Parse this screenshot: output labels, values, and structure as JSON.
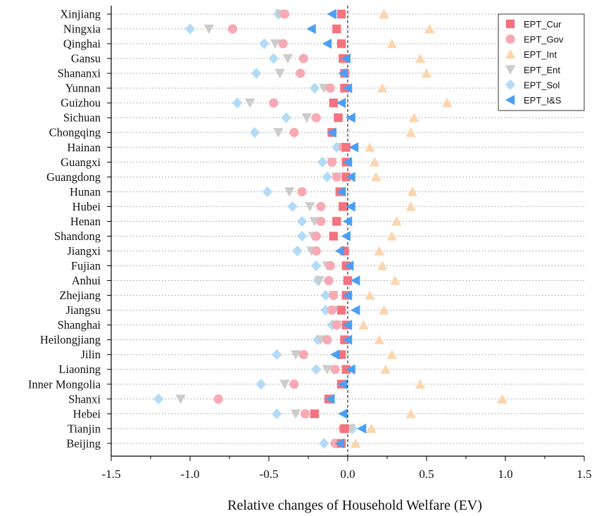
{
  "chart_data": {
    "type": "scatter",
    "xlabel": "Relative changes of Household Welfare (EV)",
    "xlim": [
      -1.5,
      1.5
    ],
    "xticks": [
      "-1.5",
      "-1.0",
      "-0.5",
      "0.0",
      "0.5",
      "1.0",
      "1.5"
    ],
    "grid": "horizontal dotted",
    "reference_line": "dashed vertical at x=0",
    "legend_position": "top-right",
    "categories": [
      "Xinjiang",
      "Ningxia",
      "Qinghai",
      "Gansu",
      "Shananxi",
      "Yunnan",
      "Guizhou",
      "Sichuan",
      "Chongqing",
      "Hainan",
      "Guangxi",
      "Guangdong",
      "Hunan",
      "Hubei",
      "Henan",
      "Shandong",
      "Jiangxi",
      "Fujian",
      "Anhui",
      "Zhejiang",
      "Jiangsu",
      "Shanghai",
      "Heilongjiang",
      "Jilin",
      "Liaoning",
      "Inner Mongolia",
      "Shanxi",
      "Hebei",
      "Tianjin",
      "Beijing"
    ],
    "series": [
      {
        "name": "EPT_Cur",
        "marker": "square",
        "color": "#f4737f",
        "values": [
          -0.04,
          -0.07,
          -0.04,
          -0.03,
          -0.02,
          -0.02,
          -0.09,
          -0.06,
          -0.1,
          -0.01,
          -0.01,
          -0.01,
          -0.05,
          -0.03,
          -0.07,
          -0.09,
          -0.02,
          -0.01,
          0.0,
          -0.01,
          -0.04,
          -0.01,
          -0.02,
          -0.04,
          -0.01,
          -0.04,
          -0.12,
          -0.21,
          -0.02,
          -0.04
        ]
      },
      {
        "name": "EPT_Gov",
        "marker": "circle",
        "color": "#f7aab4",
        "values": [
          -0.4,
          -0.73,
          -0.41,
          -0.28,
          -0.3,
          -0.11,
          -0.47,
          -0.2,
          -0.34,
          -0.03,
          -0.1,
          -0.07,
          -0.29,
          -0.17,
          -0.17,
          -0.2,
          -0.2,
          -0.11,
          -0.12,
          -0.09,
          -0.1,
          -0.07,
          -0.13,
          -0.28,
          -0.08,
          -0.34,
          -0.82,
          -0.27,
          -0.03,
          -0.08
        ]
      },
      {
        "name": "EPT_Int",
        "marker": "triangle-up",
        "color": "#fcd5ad",
        "values": [
          0.23,
          0.52,
          0.28,
          0.46,
          0.5,
          0.22,
          0.63,
          0.42,
          0.4,
          0.14,
          0.17,
          0.18,
          0.41,
          0.4,
          0.31,
          0.28,
          0.2,
          0.22,
          0.3,
          0.14,
          0.23,
          0.1,
          0.2,
          0.28,
          0.24,
          0.46,
          0.98,
          0.4,
          0.15,
          0.05
        ]
      },
      {
        "name": "EPT_Ent",
        "marker": "triangle-down",
        "color": "#cccccc",
        "values": [
          -0.43,
          -0.88,
          -0.46,
          -0.38,
          -0.43,
          -0.15,
          -0.62,
          -0.26,
          -0.44,
          -0.03,
          -0.1,
          -0.07,
          -0.37,
          -0.24,
          -0.21,
          -0.22,
          -0.23,
          -0.13,
          -0.18,
          -0.09,
          -0.09,
          -0.07,
          -0.17,
          -0.33,
          -0.13,
          -0.4,
          -1.06,
          -0.33,
          0.02,
          -0.07
        ]
      },
      {
        "name": "EPT_Sol",
        "marker": "diamond",
        "color": "#b3dbf7",
        "values": [
          -0.44,
          -1.0,
          -0.53,
          -0.47,
          -0.58,
          -0.21,
          -0.7,
          -0.39,
          -0.59,
          -0.07,
          -0.16,
          -0.13,
          -0.51,
          -0.35,
          -0.29,
          -0.29,
          -0.32,
          -0.2,
          -0.19,
          -0.14,
          -0.14,
          -0.1,
          -0.19,
          -0.45,
          -0.2,
          -0.55,
          -1.2,
          -0.45,
          0.03,
          -0.15
        ]
      },
      {
        "name": "EPT_I&S",
        "marker": "triangle-left",
        "color": "#4a9ff2",
        "values": [
          -0.1,
          -0.23,
          -0.13,
          -0.01,
          -0.03,
          0.0,
          -0.04,
          0.02,
          -0.1,
          0.04,
          0.0,
          0.02,
          -0.04,
          0.02,
          0.0,
          -0.01,
          -0.05,
          0.01,
          0.05,
          0.0,
          0.05,
          0.0,
          0.0,
          -0.08,
          0.02,
          -0.03,
          -0.11,
          -0.03,
          0.09,
          -0.05
        ]
      }
    ]
  }
}
